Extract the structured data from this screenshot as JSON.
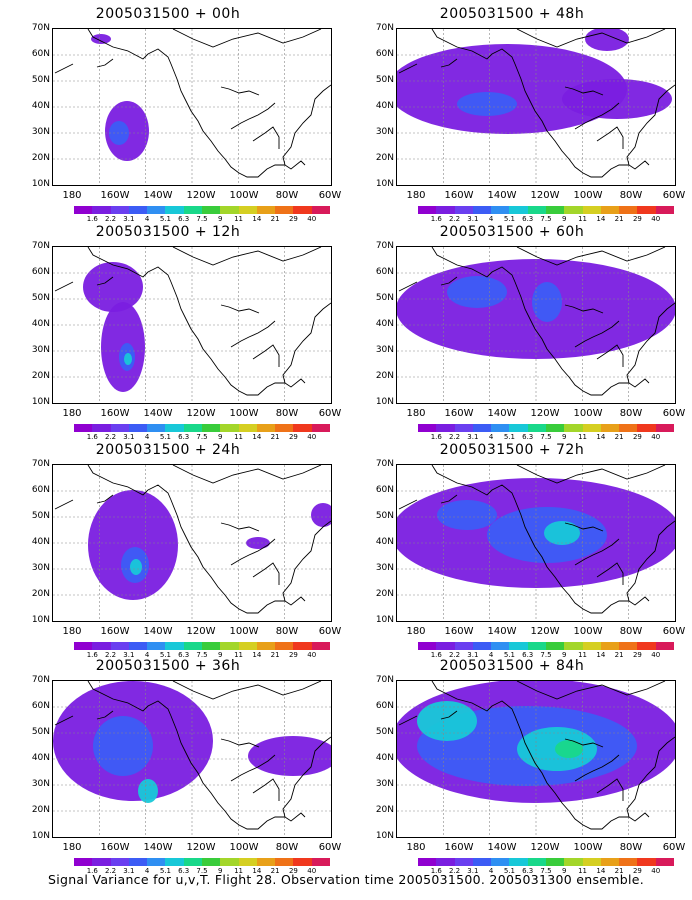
{
  "panels": [
    {
      "title": "2005031500 + 00h"
    },
    {
      "title": "2005031500 + 48h"
    },
    {
      "title": "2005031500 + 12h"
    },
    {
      "title": "2005031500 + 60h"
    },
    {
      "title": "2005031500 + 24h"
    },
    {
      "title": "2005031500 + 72h"
    },
    {
      "title": "2005031500 + 36h"
    },
    {
      "title": "2005031500 + 84h"
    }
  ],
  "axes": {
    "lat_labels": [
      "70N",
      "60N",
      "50N",
      "40N",
      "30N",
      "20N",
      "10N"
    ],
    "lon_labels": [
      "180",
      "160W",
      "140W",
      "120W",
      "100W",
      "80W",
      "60W"
    ]
  },
  "colorbar": {
    "colors": [
      "#9000d0",
      "#7a1ee0",
      "#6a3ff0",
      "#3c5cf5",
      "#2f8ff2",
      "#18c8d8",
      "#19d88a",
      "#39cc3b",
      "#a3d62a",
      "#d5cf22",
      "#e8a019",
      "#ef7218",
      "#f0381e",
      "#d81a5a"
    ],
    "labels": [
      "1.6",
      "2.2",
      "3.1",
      "4",
      "5.1",
      "6.3",
      "7.5",
      "9",
      "11",
      "14",
      "21",
      "29",
      "40"
    ]
  },
  "caption": "Signal Variance for u,v,T. Flight 28. Observation time 2005031500. 2005031300 ensemble."
}
